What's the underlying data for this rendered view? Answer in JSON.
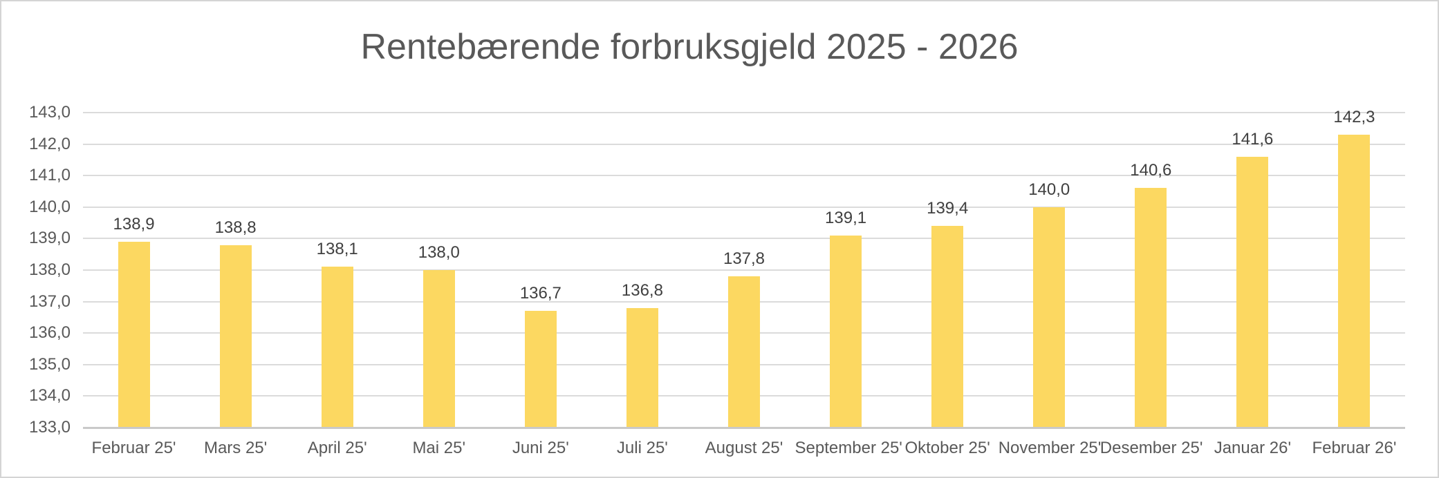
{
  "chart_data": {
    "type": "bar",
    "title": "Rentebærende forbruksgjeld 2025 - 2026",
    "categories": [
      "Februar 25'",
      "Mars 25'",
      "April 25'",
      "Mai 25'",
      "Juni 25'",
      "Juli 25'",
      "August 25'",
      "September 25'",
      "Oktober 25'",
      "November 25'",
      "Desember 25'",
      "Januar 26'",
      "Februar 26'"
    ],
    "values": [
      138.9,
      138.8,
      138.1,
      138.0,
      136.7,
      136.8,
      137.8,
      139.1,
      139.4,
      140.0,
      140.6,
      141.6,
      142.3
    ],
    "value_labels": [
      "138,9",
      "138,8",
      "138,1",
      "138,0",
      "136,7",
      "136,8",
      "137,8",
      "139,1",
      "139,4",
      "140,0",
      "140,6",
      "141,6",
      "142,3"
    ],
    "xlabel": "",
    "ylabel": "",
    "y_axis": {
      "min": 133,
      "max": 143,
      "step": 1,
      "tick_labels": [
        "143,0",
        "142,0",
        "141,0",
        "140,0",
        "139,0",
        "138,0",
        "137,0",
        "136,0",
        "135,0",
        "134,0",
        "133,0"
      ]
    },
    "grid": true,
    "legend": "none",
    "colors": {
      "bar": "#FCD861",
      "gridline": "#DBDBDB",
      "axis_line": "#C9C9C9",
      "tick_text": "#595959",
      "data_label_text": "#404040",
      "title_text": "#595959",
      "frame_border": "#D4D4D4",
      "background": "#FFFFFF"
    }
  }
}
